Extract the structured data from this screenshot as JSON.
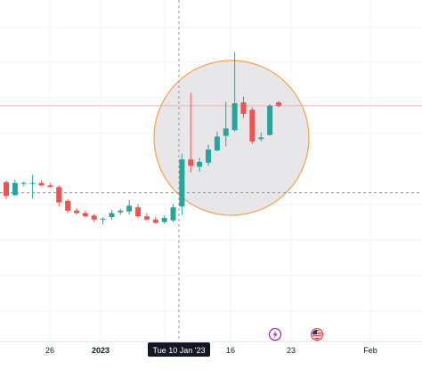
{
  "chart_data": {
    "type": "candlestick",
    "time_axis_labels": [
      "26",
      "2023",
      "16",
      "23",
      "Feb"
    ],
    "crosshair_date_label": "Tue 10 Jan '23",
    "candles": [
      {
        "open": 43.6,
        "high": 43.8,
        "low": 41.5,
        "close": 41.9
      },
      {
        "open": 42.0,
        "high": 43.9,
        "low": 41.9,
        "close": 43.5
      },
      {
        "open": 43.4,
        "high": 43.7,
        "low": 43.1,
        "close": 43.5
      },
      {
        "open": 43.4,
        "high": 44.5,
        "low": 41.6,
        "close": 43.5
      },
      {
        "open": 43.5,
        "high": 43.8,
        "low": 43.1,
        "close": 43.2
      },
      {
        "open": 43.2,
        "high": 43.5,
        "low": 43.0,
        "close": 43.0
      },
      {
        "open": 43.0,
        "high": 43.2,
        "low": 40.6,
        "close": 41.1
      },
      {
        "open": 41.3,
        "high": 41.5,
        "low": 39.8,
        "close": 40.1
      },
      {
        "open": 40.1,
        "high": 40.4,
        "low": 39.6,
        "close": 39.8
      },
      {
        "open": 39.8,
        "high": 40.1,
        "low": 39.3,
        "close": 39.4
      },
      {
        "open": 39.5,
        "high": 39.7,
        "low": 38.7,
        "close": 39.0
      },
      {
        "open": 39.0,
        "high": 39.3,
        "low": 38.4,
        "close": 39.1
      },
      {
        "open": 39.3,
        "high": 40.2,
        "low": 39.0,
        "close": 39.8
      },
      {
        "open": 39.9,
        "high": 40.3,
        "low": 39.6,
        "close": 40.1
      },
      {
        "open": 40.0,
        "high": 41.4,
        "low": 39.6,
        "close": 40.7
      },
      {
        "open": 40.5,
        "high": 40.9,
        "low": 39.2,
        "close": 39.4
      },
      {
        "open": 39.4,
        "high": 39.8,
        "low": 38.9,
        "close": 39.0
      },
      {
        "open": 39.0,
        "high": 39.3,
        "low": 38.5,
        "close": 38.6
      },
      {
        "open": 38.7,
        "high": 39.5,
        "low": 38.5,
        "close": 39.2
      },
      {
        "open": 38.9,
        "high": 40.9,
        "low": 38.7,
        "close": 40.5
      },
      {
        "open": 40.6,
        "high": 47.1,
        "low": 39.6,
        "close": 46.4
      },
      {
        "open": 46.4,
        "high": 54.6,
        "low": 44.8,
        "close": 45.6
      },
      {
        "open": 45.5,
        "high": 46.6,
        "low": 44.9,
        "close": 46.1
      },
      {
        "open": 46.0,
        "high": 48.2,
        "low": 45.6,
        "close": 47.6
      },
      {
        "open": 47.5,
        "high": 49.8,
        "low": 47.4,
        "close": 49.2
      },
      {
        "open": 49.3,
        "high": 53.5,
        "low": 48.0,
        "close": 50.2
      },
      {
        "open": 50.0,
        "high": 59.6,
        "low": 49.8,
        "close": 53.3
      },
      {
        "open": 53.4,
        "high": 54.1,
        "low": 51.5,
        "close": 52.0
      },
      {
        "open": 52.5,
        "high": 52.8,
        "low": 48.3,
        "close": 48.6
      },
      {
        "open": 48.9,
        "high": 49.7,
        "low": 48.6,
        "close": 49.1
      },
      {
        "open": 49.4,
        "high": 53.2,
        "low": 49.3,
        "close": 53.0
      },
      {
        "open": 53.4,
        "high": 53.6,
        "low": 52.8,
        "close": 53.0
      }
    ],
    "crosshair_price": 42.3,
    "ylim": [
      24,
      66
    ],
    "colors": {
      "up": "#26a69a",
      "down": "#ef5350",
      "highlight_fill": "#e3e3e6",
      "highlight_stroke": "#f5a548",
      "crosshair": "#9598a1",
      "last_price_line": "#f7b2b2",
      "axis_text": "#131722",
      "tooltip_bg": "#131722",
      "tooltip_text": "#ffffff",
      "event_lightning": "#9c27b0",
      "event_flag": "#f44336"
    },
    "icons": {
      "lightning": "lightning-event-icon",
      "flag": "us-flag-event-icon"
    }
  }
}
